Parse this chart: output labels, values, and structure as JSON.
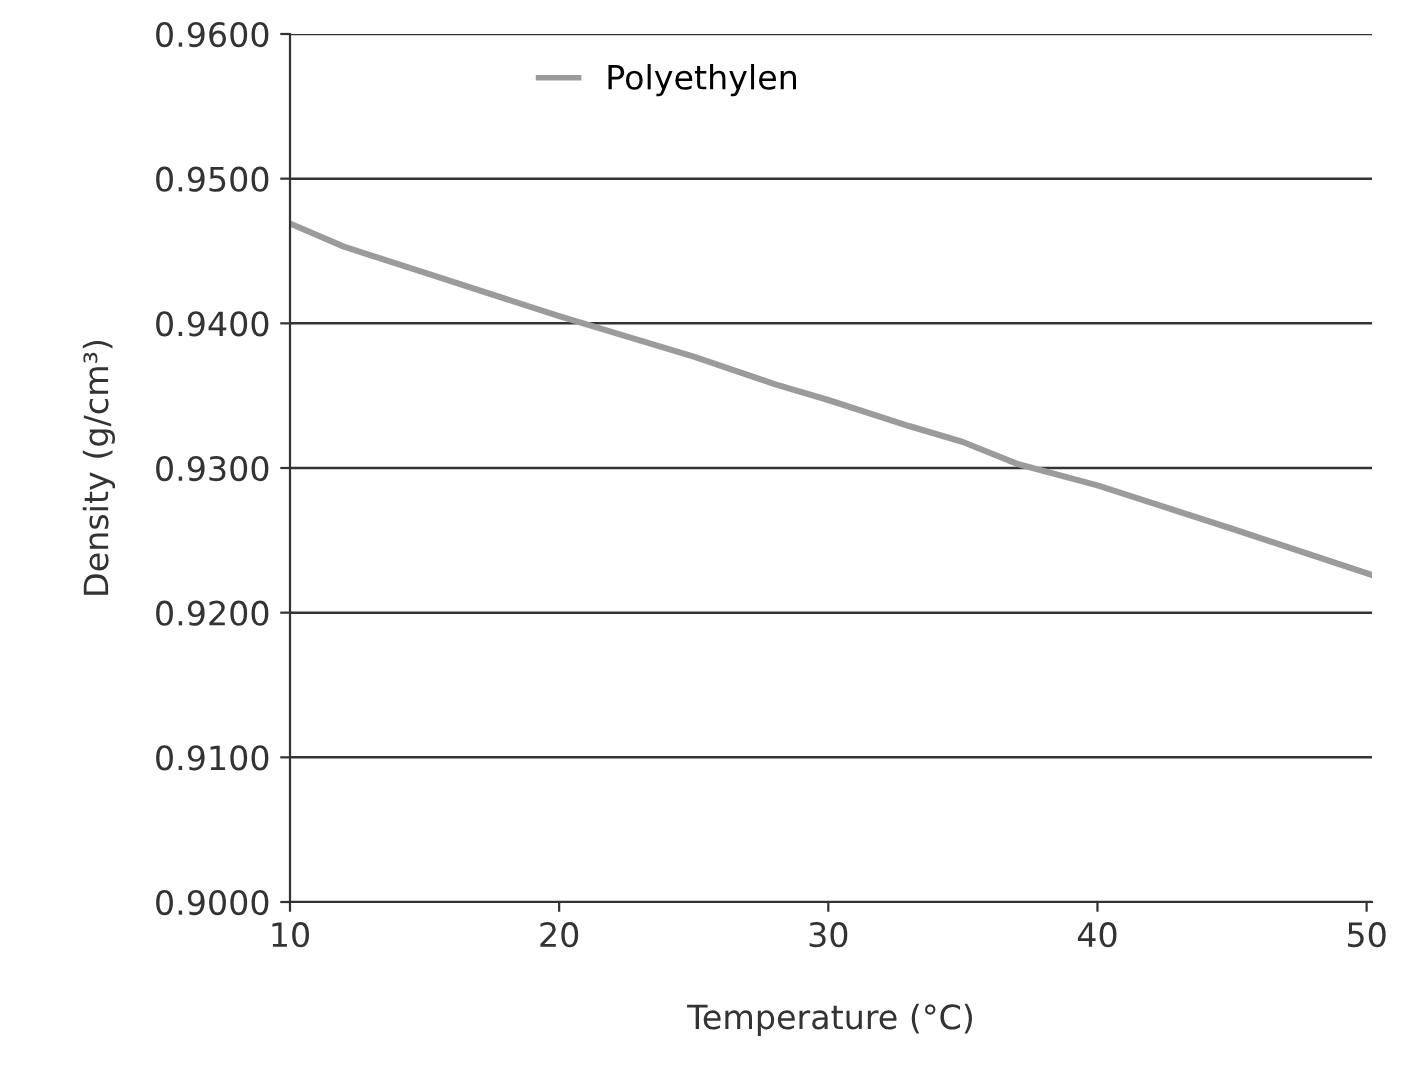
{
  "chart_data": {
    "type": "line",
    "xlabel": "Temperature (°C)",
    "ylabel": "Density (g/cm³)",
    "series": [
      {
        "name": "Polyethylen",
        "color": "#9b9b9b",
        "x": [
          10,
          12,
          15,
          20,
          25,
          28,
          30,
          33,
          35,
          37,
          40,
          45,
          50.2
        ],
        "values": [
          0.9469,
          0.9453,
          0.9435,
          0.9405,
          0.9377,
          0.9358,
          0.9347,
          0.9329,
          0.9318,
          0.9303,
          0.9288,
          0.9258,
          0.9226
        ]
      }
    ],
    "xlim": [
      10,
      50.2
    ],
    "xticks": [
      10,
      20,
      30,
      40,
      50
    ],
    "ylim": [
      0.9,
      0.96
    ],
    "yticks": [
      {
        "value": 0.9,
        "label": "0.9000"
      },
      {
        "value": 0.91,
        "label": "0.9100"
      },
      {
        "value": 0.92,
        "label": "0.9200"
      },
      {
        "value": 0.93,
        "label": "0.9300"
      },
      {
        "value": 0.94,
        "label": "0.9400"
      },
      {
        "value": 0.95,
        "label": "0.9500"
      },
      {
        "value": 0.96,
        "label": "0.9600"
      }
    ],
    "grid": "y",
    "legend": "top",
    "marker": "none",
    "line_style": "solid"
  }
}
